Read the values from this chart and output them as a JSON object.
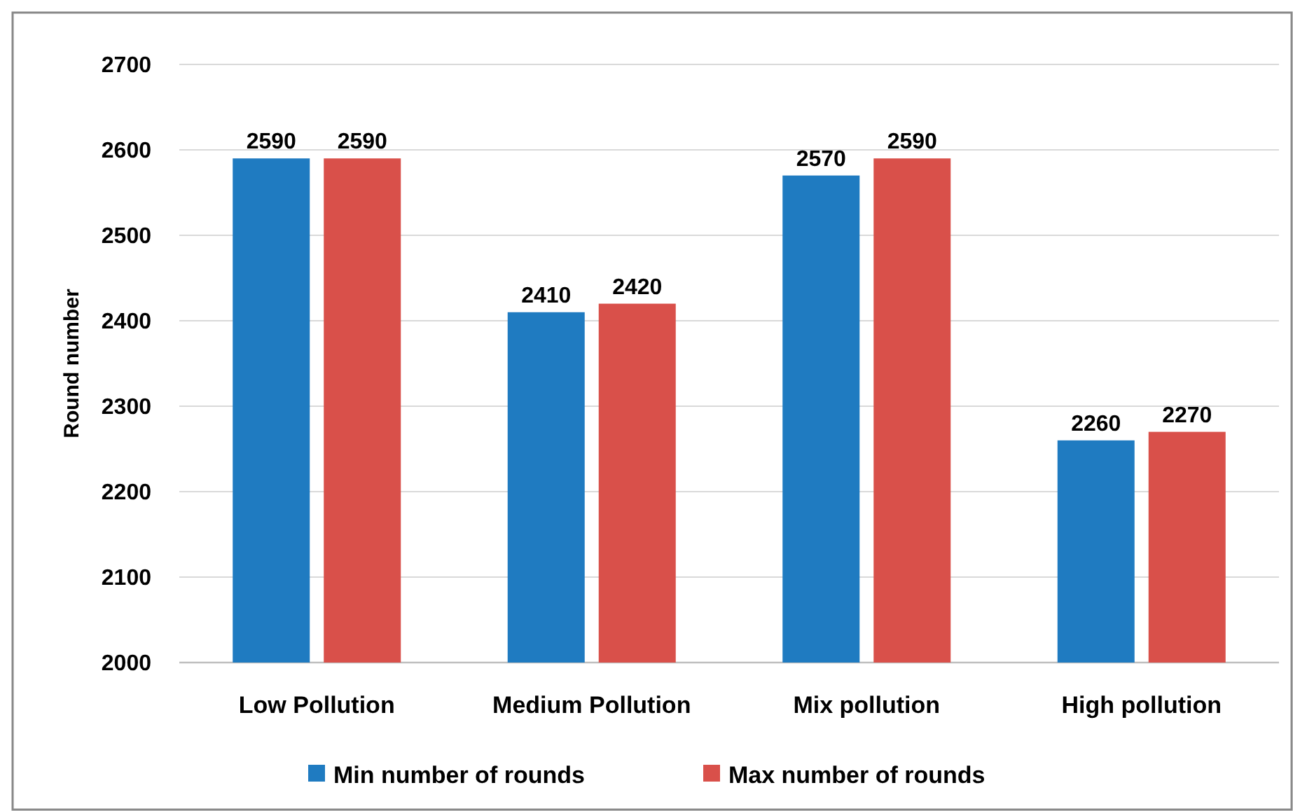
{
  "chart_data": {
    "type": "bar",
    "ylabel": "Round number",
    "categories": [
      "Low Pollution",
      "Medium Pollution",
      "Mix pollution",
      "High pollution"
    ],
    "series": [
      {
        "name": "Min number of rounds",
        "color": "#1f7bc1",
        "values": [
          2590,
          2410,
          2570,
          2260
        ]
      },
      {
        "name": "Max number of rounds",
        "color": "#d9504a",
        "values": [
          2590,
          2420,
          2590,
          2270
        ]
      }
    ],
    "ylim": [
      2000,
      2700
    ],
    "yticks": [
      2000,
      2100,
      2200,
      2300,
      2400,
      2500,
      2600,
      2700
    ],
    "grid": "y",
    "legend": "bottom",
    "data_labels": true
  }
}
